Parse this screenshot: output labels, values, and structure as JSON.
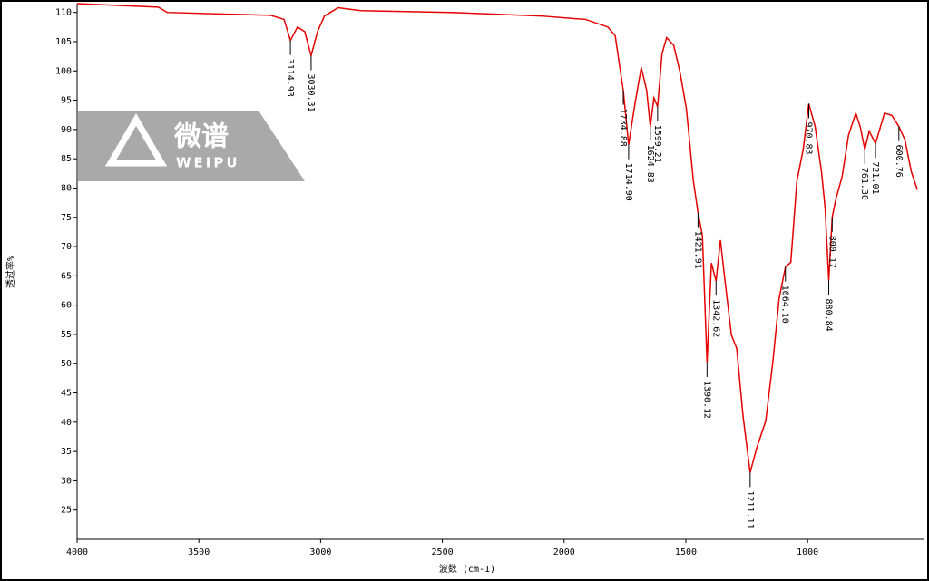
{
  "chart_data": {
    "type": "line",
    "xlabel": "波数 (cm-1)",
    "ylabel": "透过率%",
    "watermark": {
      "title": "微谱",
      "subtitle": "WEIPU"
    },
    "xlim": [
      4000,
      520
    ],
    "xticks": [
      4000,
      3500,
      3000,
      2500,
      2000,
      1500,
      1000
    ],
    "ylim": [
      20,
      111.5
    ],
    "yticks": [
      25,
      30,
      35,
      40,
      45,
      50,
      55,
      60,
      65,
      70,
      75,
      80,
      85,
      90,
      95,
      100,
      105,
      110
    ],
    "series": [
      {
        "color": "#e60000",
        "x": [
          4000,
          3667,
          3630,
          3205,
          3150,
          3124,
          3095,
          3065,
          3039,
          3013,
          2984,
          2928,
          2835,
          2466,
          2097,
          1912,
          1820,
          1790,
          1771,
          1757,
          1735,
          1709,
          1683,
          1661,
          1646,
          1631,
          1616,
          1598,
          1579,
          1550,
          1524,
          1498,
          1469,
          1450,
          1432,
          1413,
          1395,
          1376,
          1358,
          1339,
          1313,
          1291,
          1265,
          1236,
          1209,
          1172,
          1143,
          1117,
          1091,
          1069,
          1044,
          1018,
          995,
          969,
          943,
          928,
          913,
          899,
          884,
          858,
          832,
          802,
          784,
          765,
          747,
          721,
          684,
          654,
          625,
          600,
          574,
          549
        ],
        "values": [
          111.5,
          110.9,
          110,
          109.5,
          108.8,
          105.2,
          107.5,
          106.7,
          102.6,
          106.7,
          109.4,
          110.8,
          110.3,
          110,
          109.4,
          108.8,
          107.5,
          106,
          100.6,
          96.7,
          87.4,
          94.4,
          100.6,
          96.7,
          90.5,
          95.4,
          93.9,
          102.9,
          105.7,
          104.4,
          99.8,
          93.6,
          81.2,
          75.8,
          71.9,
          50.2,
          67.2,
          64.1,
          71.1,
          64.1,
          54.9,
          52.6,
          41,
          31.4,
          35.6,
          40.2,
          50.2,
          61.1,
          66.5,
          67.3,
          81.2,
          86.6,
          94.4,
          90.5,
          82.8,
          76.6,
          64.2,
          75,
          78.1,
          82,
          89,
          92.8,
          90.5,
          86.6,
          89.7,
          87.6,
          92.8,
          92.4,
          90.5,
          88.2,
          82.8,
          79.7
        ]
      }
    ],
    "annotations": [
      {
        "label": "3114.93",
        "x": 3124,
        "y": 105.2
      },
      {
        "label": "3030.31",
        "x": 3039,
        "y": 102.6
      },
      {
        "label": "1734.88",
        "x": 1757,
        "y": 96.7
      },
      {
        "label": "1714.90",
        "x": 1735,
        "y": 87.4
      },
      {
        "label": "1624.83",
        "x": 1646,
        "y": 90.5
      },
      {
        "label": "1599.21",
        "x": 1616,
        "y": 93.9
      },
      {
        "label": "1421.91",
        "x": 1450,
        "y": 75.8
      },
      {
        "label": "1390.12",
        "x": 1413,
        "y": 50.2
      },
      {
        "label": "1342.62",
        "x": 1376,
        "y": 64.1
      },
      {
        "label": "1211.11",
        "x": 1236,
        "y": 31.4
      },
      {
        "label": "1064.10",
        "x": 1091,
        "y": 66.5
      },
      {
        "label": "970.83",
        "x": 995,
        "y": 94.4
      },
      {
        "label": "880.84",
        "x": 913,
        "y": 64.2
      },
      {
        "label": "800.17",
        "x": 899,
        "y": 75
      },
      {
        "label": "761.30",
        "x": 765,
        "y": 86.6
      },
      {
        "label": "721.01",
        "x": 721,
        "y": 87.6
      },
      {
        "label": "600.76",
        "x": 625,
        "y": 90.5
      }
    ]
  }
}
